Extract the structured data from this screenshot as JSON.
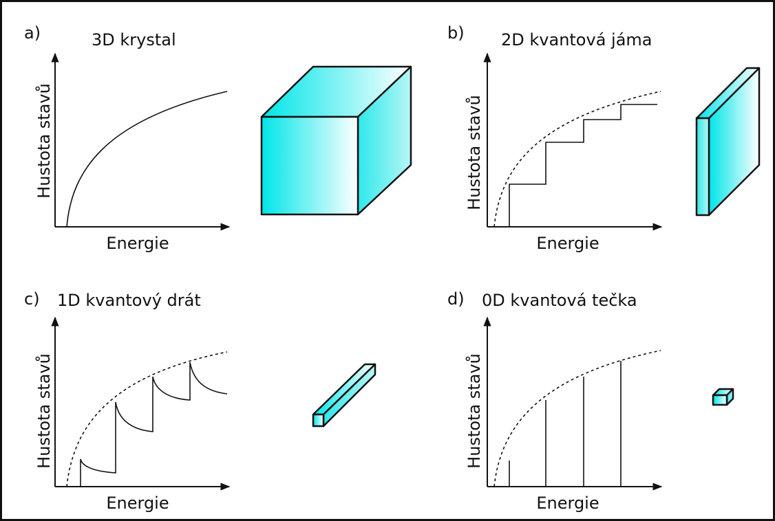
{
  "panels": [
    {
      "label": "a)",
      "title": "3D krystal",
      "y_label": "Hustota stavů",
      "x_label": "Energie"
    },
    {
      "label": "b)",
      "title": "2D kvantová jáma",
      "y_label": "Hustota stavů",
      "x_label": "Energie"
    },
    {
      "label": "c)",
      "title": "1D kvantový drát",
      "y_label": "Hustota stavů",
      "x_label": "Energie"
    },
    {
      "label": "d)",
      "title": "0D kvantová tečka",
      "y_label": "Hustota stavů",
      "x_label": "Energie"
    }
  ]
}
